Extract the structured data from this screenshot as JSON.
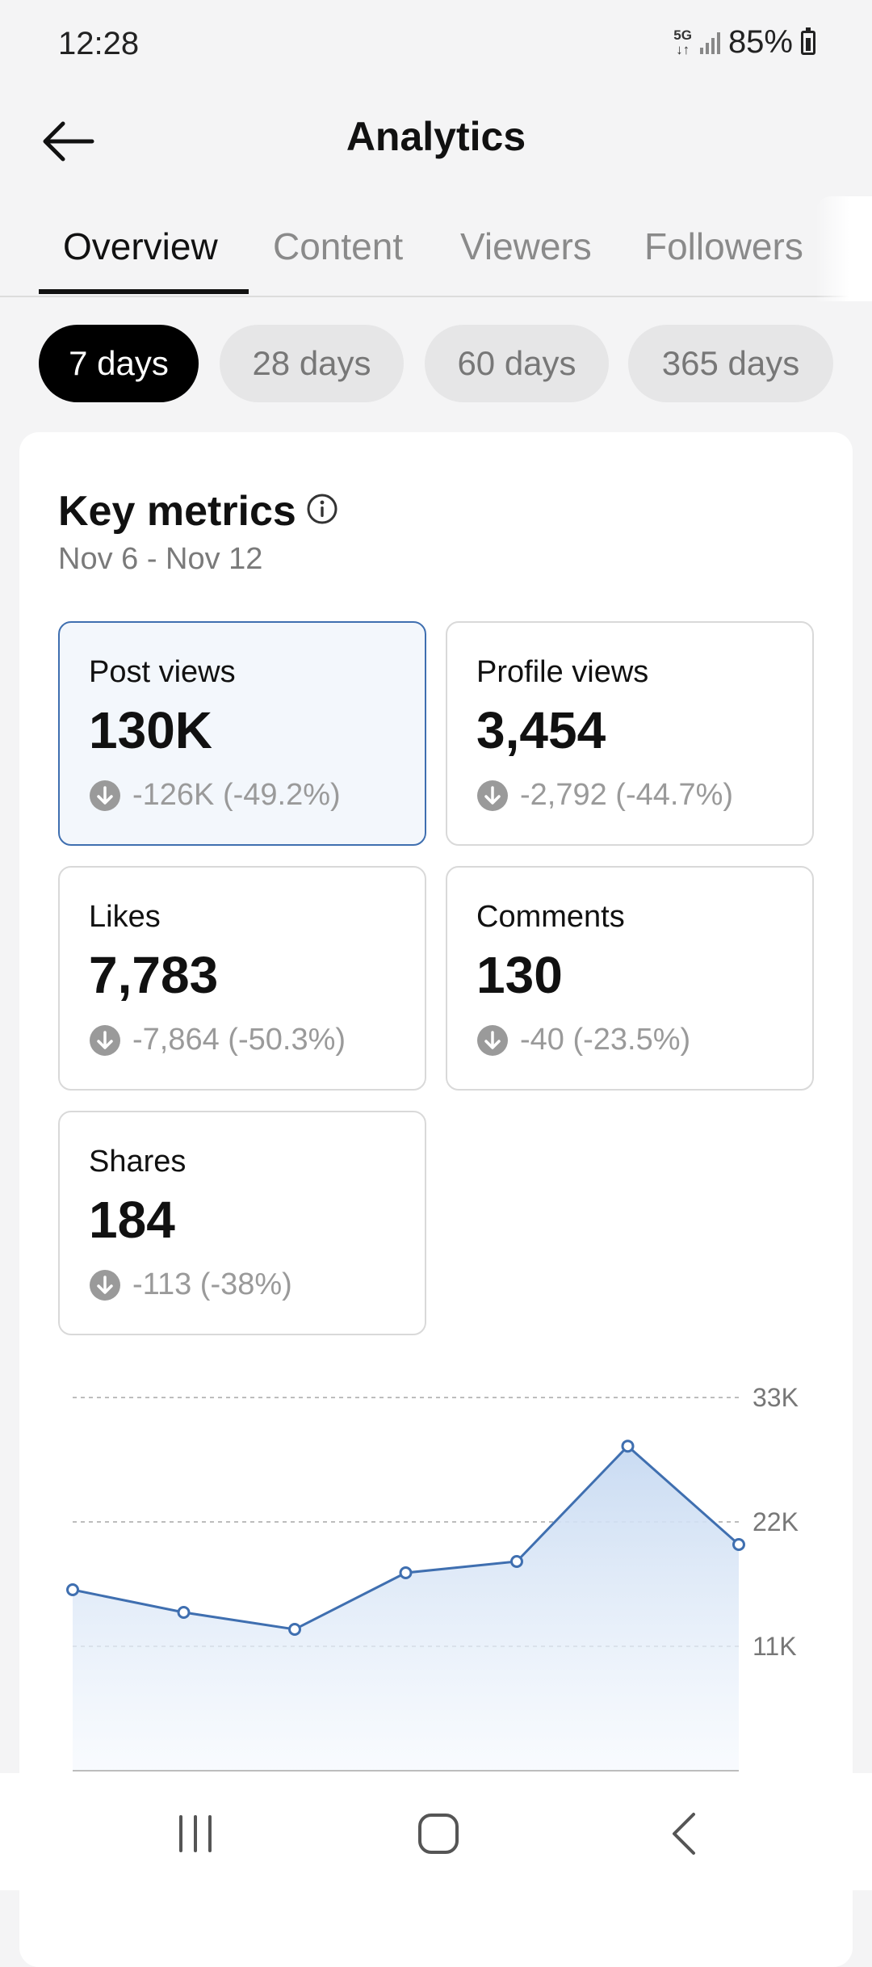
{
  "status": {
    "time": "12:28",
    "network": "5G",
    "battery": "85%"
  },
  "header": {
    "title": "Analytics"
  },
  "tabs": [
    {
      "label": "Overview",
      "active": true
    },
    {
      "label": "Content"
    },
    {
      "label": "Viewers"
    },
    {
      "label": "Followers"
    }
  ],
  "ranges": [
    {
      "label": "7 days",
      "active": true
    },
    {
      "label": "28 days"
    },
    {
      "label": "60 days"
    },
    {
      "label": "365 days"
    }
  ],
  "key_metrics": {
    "title": "Key metrics",
    "date_range": "Nov 6 - Nov 12",
    "items": [
      {
        "label": "Post views",
        "value": "130K",
        "change": "-126K (-49.2%)",
        "selected": true
      },
      {
        "label": "Profile views",
        "value": "3,454",
        "change": "-2,792 (-44.7%)"
      },
      {
        "label": "Likes",
        "value": "7,783",
        "change": "-7,864 (-50.3%)"
      },
      {
        "label": "Comments",
        "value": "130",
        "change": "-40 (-23.5%)"
      },
      {
        "label": "Shares",
        "value": "184",
        "change": "-113 (-38%)"
      }
    ]
  },
  "colors": {
    "accent": "#3f6fb0",
    "selected_bg": "#f3f7fc",
    "active_chip": "#000000"
  },
  "chart_data": {
    "type": "area",
    "title": "",
    "xlabel": "",
    "ylabel": "",
    "ylim": [
      0,
      33000
    ],
    "y_ticks": [
      "33K",
      "22K",
      "11K"
    ],
    "y_tick_values": [
      33000,
      22000,
      11000
    ],
    "grid": true,
    "series": [
      {
        "values": [
          16000,
          14000,
          12500,
          17500,
          18500,
          28700,
          20000
        ]
      }
    ]
  }
}
